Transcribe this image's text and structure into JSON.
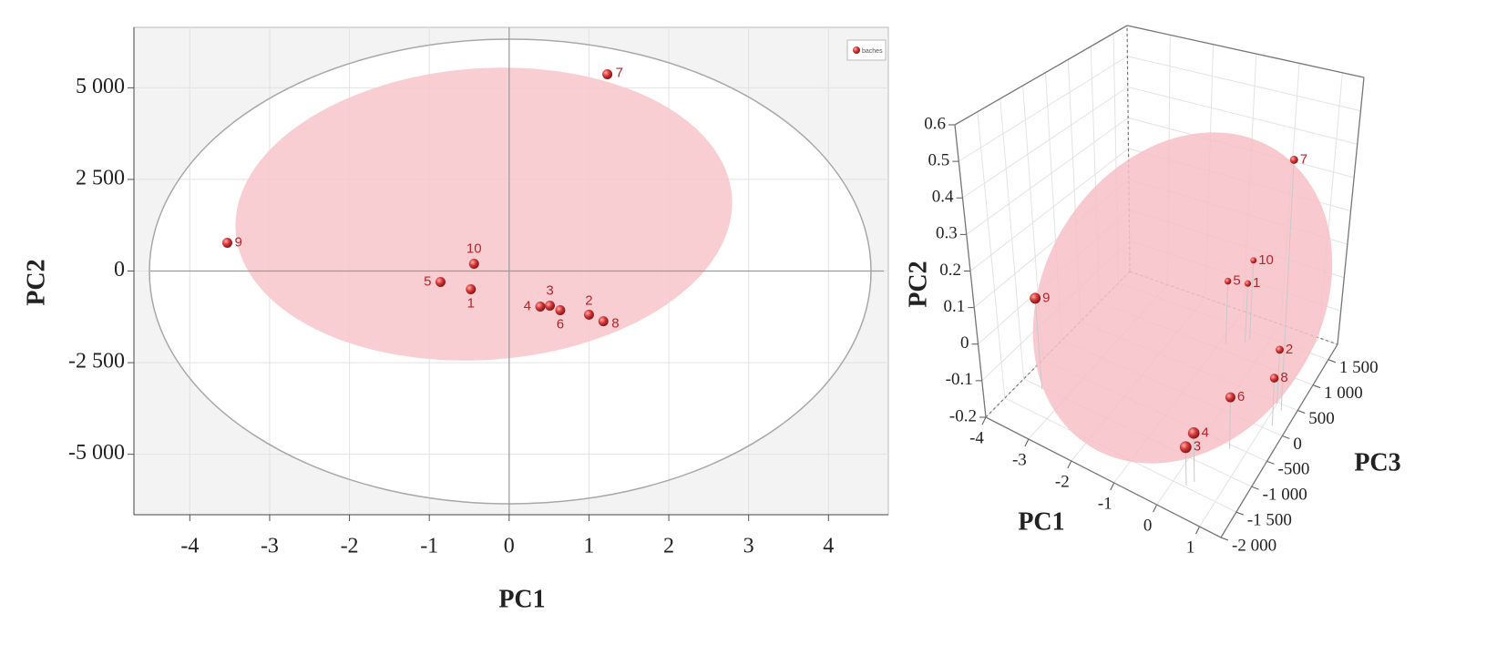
{
  "chart_data": [
    {
      "type": "scatter",
      "xlabel": "PC1",
      "ylabel": "PC2",
      "legend": "upper right",
      "grid": true,
      "xlim": [
        -4.7,
        4.75
      ],
      "ylim": [
        -6650,
        6650
      ],
      "xticks": [
        -4,
        -3,
        -2,
        -1,
        0,
        1,
        2,
        3,
        4
      ],
      "yticks": [
        {
          "value": -5000,
          "label": "-5 000"
        },
        {
          "value": -2500,
          "label": "-2 500"
        },
        0,
        {
          "value": 2500,
          "label": "2 500"
        },
        {
          "value": 5000,
          "label": "5 000"
        }
      ],
      "series": [
        {
          "name": "baches",
          "color": "#d83a3a",
          "labels": [
            "1",
            "2",
            "3",
            "4",
            "5",
            "6",
            "7",
            "8",
            "9",
            "10"
          ],
          "x": [
            -0.48,
            1.0,
            0.51,
            0.39,
            -0.86,
            0.64,
            1.23,
            1.18,
            -3.53,
            -0.44
          ],
          "values": [
            -498,
            -1190,
            -945,
            -970,
            -299,
            -1070,
            5370,
            -1370,
            771,
            199
          ]
        }
      ]
    },
    {
      "type": "scatter3d",
      "xlabel": "PC1",
      "ylabel": "PC2",
      "zlabel": "PC3",
      "grid": true,
      "xlim": [
        -4,
        1.5
      ],
      "ylim": [
        -0.2,
        0.6
      ],
      "zlim": [
        -2000,
        1800
      ],
      "xticks": [
        -4,
        -3,
        -2,
        -1,
        0,
        1
      ],
      "yticks": [
        -0.2,
        -0.1,
        0,
        0.1,
        0.2,
        0.3,
        0.4,
        0.5,
        0.6
      ],
      "zticks": [
        {
          "value": -2000,
          "label": "-2 000"
        },
        {
          "value": -1500,
          "label": "-1 500"
        },
        {
          "value": -1000,
          "label": "-1 000"
        },
        -500,
        0,
        500,
        {
          "value": 1000,
          "label": "1 000"
        },
        {
          "value": 1500,
          "label": "1 500"
        }
      ],
      "series": [
        {
          "color": "#d83a3a",
          "labels": [
            "1",
            "2",
            "3",
            "4",
            "5",
            "6",
            "7",
            "8",
            "9",
            "10"
          ],
          "x": [
            -0.48,
            1.0,
            0.29,
            0.39,
            -0.86,
            0.64,
            1.17,
            1.18,
            -3.53,
            -0.44
          ],
          "values": [
            -0.02,
            -0.04,
            -0.09,
            -0.06,
            -0.01,
            -0.05,
            0.54,
            -0.06,
            0.06,
            0.04
          ],
          "z": [
            1270,
            470,
            -1470,
            -1350,
            1130,
            -570,
            390,
            90,
            -1030,
            1360
          ]
        }
      ]
    }
  ]
}
